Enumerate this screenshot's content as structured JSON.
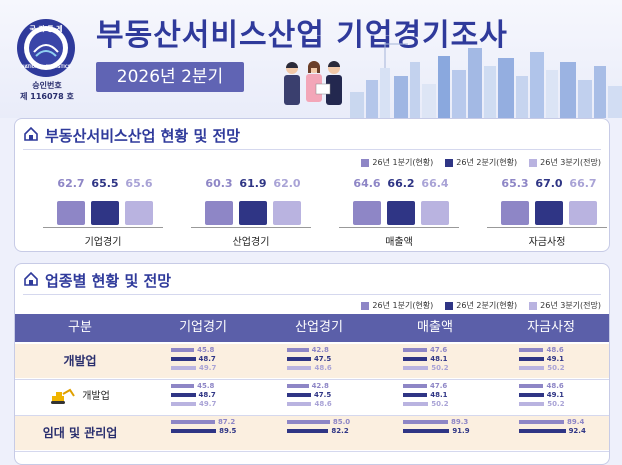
{
  "header": {
    "title": "부동산서비스산업 기업경기조사",
    "period": "2026년 2분기",
    "seal_top": "국 가 통 계",
    "seal_ring": "NATIONAL STATISTICS",
    "approval_label": "승인번호",
    "approval_number": "제 116078 호"
  },
  "colors": {
    "q1": "#8e86c6",
    "q2": "#2f3585",
    "q3": "#b9b3e0",
    "accent": "#2f3a9b"
  },
  "section1": {
    "title": "부동산서비스산업 현황 및 전망",
    "legend": [
      "26년 1분기(현황)",
      "26년 2분기(현황)",
      "26년 3분기(전망)"
    ]
  },
  "section2": {
    "title": "업종별 현황 및 전망",
    "legend": [
      "26년 1분기(현황)",
      "26년 2분기(현황)",
      "26년 3분기(전망)"
    ],
    "columns": [
      "구분",
      "기업경기",
      "산업경기",
      "매출액",
      "자금사정"
    ],
    "rows": [
      {
        "label": "개발업",
        "highlight": true,
        "values": [
          [
            45.8,
            48.7,
            49.7
          ],
          [
            42.8,
            47.5,
            48.6
          ],
          [
            47.6,
            48.1,
            50.2
          ],
          [
            48.6,
            49.1,
            50.2
          ]
        ]
      },
      {
        "label": "개발업",
        "highlight": false,
        "icon": "excavator-icon",
        "values": [
          [
            45.8,
            48.7,
            49.7
          ],
          [
            42.8,
            47.5,
            48.6
          ],
          [
            47.6,
            48.1,
            50.2
          ],
          [
            48.6,
            49.1,
            50.2
          ]
        ]
      },
      {
        "label": "임대 및 관리업",
        "highlight": true,
        "values": [
          [
            87.2,
            89.5,
            null
          ],
          [
            85.0,
            82.2,
            null
          ],
          [
            89.3,
            91.9,
            null
          ],
          [
            89.4,
            92.4,
            null
          ]
        ]
      }
    ]
  },
  "chart_data": [
    {
      "type": "bar",
      "categories": [
        "기업경기",
        "산업경기",
        "매출액",
        "자금사정"
      ],
      "series": [
        {
          "name": "26년 1분기(현황)",
          "values": [
            62.7,
            60.3,
            64.6,
            65.3
          ]
        },
        {
          "name": "26년 2분기(현황)",
          "values": [
            65.5,
            61.9,
            66.2,
            67.0
          ]
        },
        {
          "name": "26년 3분기(전망)",
          "values": [
            65.6,
            62.0,
            66.4,
            66.7
          ]
        }
      ],
      "legend": "top-right",
      "grid": false
    },
    {
      "type": "bar",
      "orientation": "horizontal",
      "categories": [
        "개발업",
        "개발업",
        "임대 및 관리업"
      ],
      "groups": [
        "기업경기",
        "산업경기",
        "매출액",
        "자금사정"
      ],
      "series": [
        {
          "name": "26년 1분기(현황)",
          "values": [
            [
              45.8,
              42.8,
              47.6,
              48.6
            ],
            [
              45.8,
              42.8,
              47.6,
              48.6
            ],
            [
              87.2,
              85.0,
              89.3,
              89.4
            ]
          ]
        },
        {
          "name": "26년 2분기(현황)",
          "values": [
            [
              48.7,
              47.5,
              48.1,
              49.1
            ],
            [
              48.7,
              47.5,
              48.1,
              49.1
            ],
            [
              89.5,
              82.2,
              91.9,
              92.4
            ]
          ]
        },
        {
          "name": "26년 3분기(전망)",
          "values": [
            [
              49.7,
              48.6,
              50.2,
              50.2
            ],
            [
              49.7,
              48.6,
              50.2,
              50.2
            ],
            [
              null,
              null,
              null,
              null
            ]
          ]
        }
      ],
      "legend": "top-right"
    }
  ]
}
